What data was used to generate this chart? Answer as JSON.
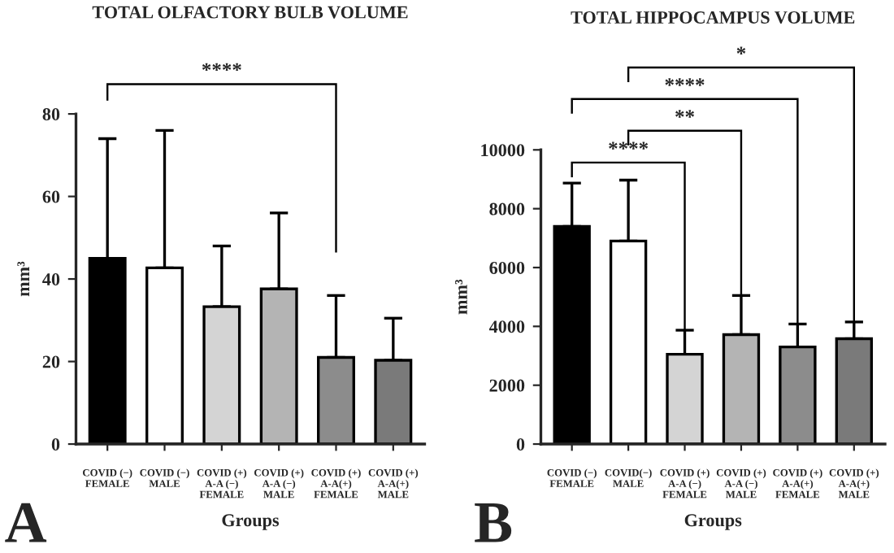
{
  "chart_data": [
    {
      "type": "bar",
      "title": "TOTAL OLFACTORY BULB VOLUME",
      "xlabel": "Groups",
      "ylabel": "mm³",
      "categories": [
        "COVID (−)\nFEMALE",
        "COVID (−)\nMALE",
        "COVID (+)\nA-A (−)\nFEMALE",
        "COVID (+)\nA-A (−)\nMALE",
        "COVID (+)\nA-A(+)\nFEMALE",
        "COVID (+)\nA-A(+)\nMALE"
      ],
      "values": [
        45,
        42.7,
        33.3,
        37.6,
        21,
        20.3
      ],
      "errors": [
        [
          45,
          74
        ],
        [
          42.7,
          76
        ],
        [
          33.3,
          48
        ],
        [
          37.6,
          56
        ],
        [
          21,
          36
        ],
        [
          20.3,
          30.5
        ]
      ],
      "colors": [
        "#000000",
        "#ffffff",
        "#d4d4d4",
        "#b4b4b4",
        "#8c8c8c",
        "#7a7a7a"
      ],
      "ylim": [
        0,
        80
      ],
      "yticks": [
        0,
        20,
        40,
        60,
        80
      ],
      "grid": false,
      "legend": false,
      "annotations": [
        "****",
        "A"
      ]
    },
    {
      "type": "bar",
      "title": "TOTAL HIPPOCAMPUS VOLUME",
      "xlabel": "Groups",
      "ylabel": "mm³",
      "categories": [
        "COVID (−)\nFEMALE",
        "COVID(−)\nMALE",
        "COVID (+)\nA-A (−)\nFEMALE",
        "COVID (+)\nA-A (−)\nMALE",
        "COVID (+)\nA-A(+)\nFEMALE",
        "COVID (+)\nA-A(+)\nMALE"
      ],
      "values": [
        7400,
        6900,
        3050,
        3720,
        3300,
        3580
      ],
      "errors": [
        [
          7400,
          8870
        ],
        [
          6900,
          8970
        ],
        [
          3050,
          3870
        ],
        [
          3720,
          5050
        ],
        [
          3300,
          4080
        ],
        [
          3580,
          4150
        ]
      ],
      "colors": [
        "#000000",
        "#ffffff",
        "#d4d4d4",
        "#b4b4b4",
        "#8c8c8c",
        "#7a7a7a"
      ],
      "ylim": [
        0,
        10000
      ],
      "yticks": [
        0,
        2000,
        4000,
        6000,
        8000,
        10000
      ],
      "grid": false,
      "legend": false,
      "annotations": [
        "****",
        "**",
        "****",
        "*",
        "B"
      ]
    }
  ]
}
